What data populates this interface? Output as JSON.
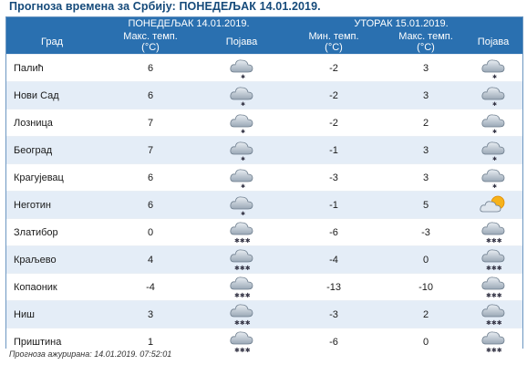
{
  "page_title": "Прогноза времена за Србију: ПОНЕДЕЉАК  14.01.2019.",
  "day1": {
    "label": "ПОНЕДЕЉАК   14.01.2019."
  },
  "day2": {
    "label": "УТОРАК   15.01.2019."
  },
  "columns": {
    "city": "Град",
    "d1_max": "Макс. темп.",
    "d1_phen": "Појава",
    "d2_min": "Мин. темп.",
    "d2_max": "Макс. темп.",
    "d2_phen": "Појава",
    "unit": "(°C)"
  },
  "rows": [
    {
      "city": "Палић",
      "d1_max": "6",
      "d1_icon": "cloud-snow-light-icon",
      "d2_min": "-2",
      "d2_max": "3",
      "d2_icon": "cloud-snow-light-icon"
    },
    {
      "city": "Нови Сад",
      "d1_max": "6",
      "d1_icon": "cloud-snow-light-icon",
      "d2_min": "-2",
      "d2_max": "3",
      "d2_icon": "cloud-snow-light-icon"
    },
    {
      "city": "Лозница",
      "d1_max": "7",
      "d1_icon": "cloud-snow-light-icon",
      "d2_min": "-2",
      "d2_max": "2",
      "d2_icon": "cloud-snow-light-icon"
    },
    {
      "city": "Београд",
      "d1_max": "7",
      "d1_icon": "cloud-snow-light-icon",
      "d2_min": "-1",
      "d2_max": "3",
      "d2_icon": "cloud-snow-light-icon"
    },
    {
      "city": "Крагујевац",
      "d1_max": "6",
      "d1_icon": "cloud-snow-light-icon",
      "d2_min": "-3",
      "d2_max": "3",
      "d2_icon": "cloud-snow-light-icon"
    },
    {
      "city": "Неготин",
      "d1_max": "6",
      "d1_icon": "cloud-snow-light-icon",
      "d2_min": "-1",
      "d2_max": "5",
      "d2_icon": "sun-cloud-icon"
    },
    {
      "city": "Златибор",
      "d1_max": "0",
      "d1_icon": "cloud-snow-heavy-icon",
      "d2_min": "-6",
      "d2_max": "-3",
      "d2_icon": "cloud-snow-heavy-icon"
    },
    {
      "city": "Краљево",
      "d1_max": "4",
      "d1_icon": "cloud-snow-heavy-icon",
      "d2_min": "-4",
      "d2_max": "0",
      "d2_icon": "cloud-snow-heavy-icon"
    },
    {
      "city": "Копаоник",
      "d1_max": "-4",
      "d1_icon": "cloud-snow-heavy-icon",
      "d2_min": "-13",
      "d2_max": "-10",
      "d2_icon": "cloud-snow-heavy-icon"
    },
    {
      "city": "Ниш",
      "d1_max": "3",
      "d1_icon": "cloud-snow-heavy-icon",
      "d2_min": "-3",
      "d2_max": "2",
      "d2_icon": "cloud-snow-heavy-icon"
    },
    {
      "city": "Приштина",
      "d1_max": "1",
      "d1_icon": "cloud-snow-heavy-icon",
      "d2_min": "-6",
      "d2_max": "0",
      "d2_icon": "cloud-snow-heavy-icon"
    }
  ],
  "footer": {
    "updated": "Прогноза ажурирана:  14.01.2019.  07:52:01"
  },
  "colors": {
    "header_bg": "#2a70b0",
    "row_alt": "#e4edf7",
    "title": "#154a7a"
  }
}
